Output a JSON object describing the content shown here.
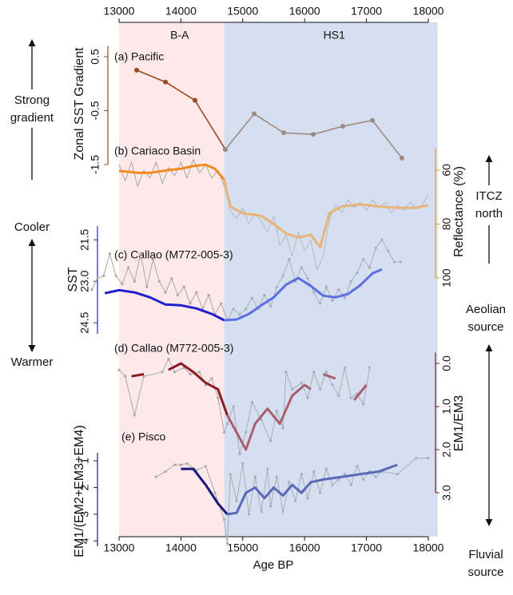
{
  "chart_data": {
    "type": "line",
    "xlabel": "Age BP",
    "xlim": [
      13000,
      18000
    ],
    "xticks": [
      13000,
      14000,
      15000,
      16000,
      17000,
      18000
    ],
    "regions": [
      {
        "label": "B-A",
        "start": 13000,
        "end": 14700,
        "color": "#fde9e9"
      },
      {
        "label": "HS1",
        "start": 14700,
        "end": 18150,
        "color": "#d6dff0"
      }
    ],
    "panels": [
      {
        "label": "(a) Pacific",
        "ylabel": "Zonal SST Gradient",
        "axis_side": "left",
        "axis_color": "#9b4a1a",
        "inverted": false,
        "ylim": [
          -1.5,
          0.7
        ],
        "yticks": [
          0.5,
          -0.5,
          -1.5
        ],
        "series": [
          {
            "style": "points",
            "color": "#9b4a1a",
            "hs1_color": "#9d8a82",
            "x": [
              13284,
              13750,
              14227,
              14718,
              15183,
              15661,
              16140,
              16618,
              17096,
              17574
            ],
            "values": [
              0.25,
              0.03,
              -0.31,
              -1.22,
              -0.56,
              -0.91,
              -0.94,
              -0.79,
              -0.68,
              -1.38
            ]
          }
        ]
      },
      {
        "label": "(b) Cariaco Basin",
        "ylabel": "Reflectance (%)",
        "axis_side": "right",
        "axis_color": "#f0961e",
        "inverted": true,
        "ylim": [
          52,
          100
        ],
        "yticks": [
          60,
          80,
          100
        ],
        "series": [
          {
            "style": "raw",
            "color": "#a8a8a8",
            "hs1_color": "#b4b8c4",
            "x": [
              13000,
              13100,
              13200,
              13300,
              13400,
              13500,
              13600,
              13700,
              13800,
              13900,
              14000,
              14100,
              14200,
              14300,
              14400,
              14500,
              14600,
              14700,
              14800,
              14900,
              15000,
              15100,
              15200,
              15300,
              15400,
              15500,
              15600,
              15700,
              15800,
              15900,
              16000,
              16100,
              16200,
              16300,
              16400,
              16500,
              16600,
              16700,
              16800,
              16900,
              17000,
              17100,
              17200,
              17300,
              17400,
              17500,
              17600,
              17700,
              17800,
              17900,
              18000
            ],
            "values": [
              58,
              64,
              57,
              66,
              60,
              63,
              57,
              65,
              59,
              62,
              57,
              63,
              56,
              61,
              58,
              63,
              60,
              66,
              75,
              78,
              74,
              80,
              76,
              79,
              83,
              77,
              88,
              84,
              92,
              83,
              90,
              86,
              97,
              92,
              78,
              73,
              76,
              71,
              74,
              72,
              75,
              71,
              74,
              72,
              76,
              73,
              75,
              72,
              74,
              73,
              69
            ]
          },
          {
            "style": "smooth",
            "color": "#f28a1e",
            "hs1_color": "#e9b47a",
            "x": [
              13000,
              13300,
              13500,
              13800,
              14000,
              14200,
              14400,
              14550,
              14700,
              14800,
              15000,
              15300,
              15500,
              15700,
              15900,
              16100,
              16250,
              16400,
              16600,
              16900,
              17200,
              17500,
              17800,
              18000
            ],
            "values": [
              60.3,
              61,
              61,
              60,
              59.5,
              58.5,
              58,
              59.5,
              63.5,
              73.5,
              76,
              77,
              80,
              83.5,
              85,
              84,
              88.6,
              76,
              73.5,
              72.7,
              73.5,
              74,
              74,
              73
            ]
          }
        ]
      },
      {
        "label": "(c) Callao (M772-005-3)",
        "ylabel": "SST",
        "axis_side": "left",
        "axis_color": "#2323d8",
        "inverted": true,
        "ylim": [
          21.0,
          24.9
        ],
        "yticks": [
          21.5,
          {
            "value": 23,
            "label": "23.0"
          },
          24.5
        ],
        "series": [
          {
            "style": "raw",
            "color": "#a8a8a8",
            "hs1_color": "#a8acb8",
            "x": [
              12560,
              12650,
              12750,
              12850,
              12950,
              13050,
              13150,
              13250,
              13350,
              13450,
              13550,
              13650,
              13750,
              13850,
              13950,
              14050,
              14150,
              14250,
              14350,
              14450,
              14550,
              14650,
              14750,
              14850,
              14950,
              15050,
              15150,
              15250,
              15350,
              15450,
              15550,
              15650,
              15750,
              15850,
              15950,
              16050,
              16150,
              16250,
              16350,
              16450,
              16550,
              16650,
              16750,
              16850,
              16950,
              17050,
              17150,
              17250,
              17350,
              17450,
              17550
            ],
            "values": [
              23.3,
              22.9,
              22.8,
              22.0,
              22.8,
              23.1,
              22.5,
              23.0,
              22.0,
              23.2,
              22.2,
              23.0,
              23.4,
              22.9,
              23.5,
              23.2,
              23.8,
              23.4,
              24.0,
              23.5,
              24.2,
              23.8,
              24.4,
              24.0,
              24.2,
              24.0,
              23.6,
              24.0,
              23.5,
              23.9,
              23.2,
              22.8,
              22.2,
              23.0,
              22.5,
              22.9,
              23.4,
              23.8,
              23.2,
              23.7,
              23.3,
              23.6,
              23.0,
              22.7,
              22.2,
              22.5,
              21.8,
              21.5,
              21.9,
              22.3,
              22.3
            ]
          },
          {
            "style": "smooth",
            "color": "#1f1fd0",
            "hs1_color": "#5a6ee0",
            "x": [
              12770,
              13000,
              13250,
              13500,
              13750,
              14000,
              14250,
              14500,
              14700,
              14900,
              15100,
              15300,
              15500,
              15700,
              15900,
              16100,
              16300,
              16500,
              16700,
              16900,
              17100,
              17250
            ],
            "values": [
              23.43,
              23.32,
              23.4,
              23.58,
              23.84,
              23.87,
              23.98,
              24.18,
              24.41,
              24.38,
              24.18,
              23.87,
              23.58,
              23.12,
              22.88,
              23.17,
              23.52,
              23.58,
              23.46,
              23.14,
              22.71,
              22.57
            ]
          }
        ]
      },
      {
        "label": "(d) Callao (M772-005-3)",
        "ylabel": "EM1/EM3",
        "axis_side": "right",
        "axis_color": "#8b1a22",
        "inverted": true,
        "ylim": [
          -0.25,
          3.0
        ],
        "yticks": [
          {
            "value": 0,
            "label": "0.0"
          },
          {
            "value": 1,
            "label": "1.0"
          },
          {
            "value": 2,
            "label": "2.0"
          },
          {
            "value": 3,
            "label": "3.0"
          }
        ],
        "series": [
          {
            "style": "raw",
            "color": "#a8a8a8",
            "hs1_color": "#a8acb8",
            "x": [
              13000,
              13100,
              13250,
              13400,
              13700,
              13800,
              13900,
              14050,
              14150,
              14300,
              14400,
              14500,
              14600,
              14700,
              14750,
              14850,
              14950,
              15050,
              15150,
              15300,
              15450,
              15550,
              15650,
              15700,
              15800,
              15950,
              16050,
              16150,
              16250,
              16350,
              16450,
              16550,
              16650,
              16750,
              16850,
              16950,
              17050
            ],
            "values": [
              0.15,
              0.3,
              1.2,
              0.3,
              0.2,
              -0.1,
              0.2,
              0.1,
              0.25,
              0.2,
              0.5,
              0.35,
              0.8,
              1.6,
              1.4,
              1.0,
              2.1,
              1.6,
              0.9,
              1.3,
              1.8,
              1.1,
              1.5,
              0.2,
              0.6,
              0.45,
              0.8,
              0.2,
              0.6,
              0.2,
              0.5,
              0.75,
              0.1,
              0.8,
              0.7,
              0.95,
              0.1
            ]
          },
          {
            "style": "smooth",
            "color": "#8b1a22",
            "hs1_color": "#a8606e",
            "x": [
              13200,
              13400,
              13600,
              13800,
              14000,
              14200,
              14400,
              14600,
              14750,
              14900,
              15050,
              15200,
              15400,
              15600,
              15800,
              16000,
              16100,
              16200,
              16300,
              16500,
              16650,
              16800,
              17000
            ],
            "values": [
              0.3,
              0.25,
              null,
              0.15,
              0.0,
              0.2,
              0.45,
              0.6,
              1.2,
              1.6,
              2.0,
              1.4,
              1.05,
              1.4,
              0.75,
              0.5,
              0.6,
              null,
              0.25,
              0.35,
              null,
              0.85,
              0.5
            ]
          }
        ]
      },
      {
        "label": "(e) Pisco",
        "ylabel": "EM1/(EM2+EM3+EM4)",
        "axis_side": "left",
        "axis_color": "#1a1a7a",
        "inverted": true,
        "ylim": [
          0.7,
          4.2
        ],
        "yticks": [
          1,
          2,
          3,
          4
        ],
        "series": [
          {
            "style": "raw",
            "color": "#a8a8a8",
            "hs1_color": "#a8acb8",
            "x": [
              13600,
              13750,
              13900,
              14000,
              14100,
              14250,
              14400,
              14550,
              14700,
              14750,
              14800,
              14900,
              15000,
              15100,
              15200,
              15300,
              15400,
              15450,
              15550,
              15650,
              15750,
              15850,
              15950,
              16050,
              16150,
              16250,
              16350,
              16450,
              16550,
              16650,
              16750,
              16850,
              16950,
              17050,
              17150,
              17250,
              17500,
              17800,
              18000
            ],
            "values": [
              1.6,
              1.4,
              1.15,
              1.15,
              1.1,
              1.35,
              1.2,
              2.2,
              3.2,
              4.1,
              1.5,
              2.5,
              1.1,
              3.0,
              1.6,
              2.9,
              1.3,
              2.7,
              1.6,
              2.9,
              1.8,
              2.5,
              1.5,
              2.4,
              1.4,
              2.2,
              1.3,
              1.9,
              1.7,
              1.5,
              1.9,
              1.2,
              1.7,
              1.4,
              1.6,
              1.4,
              1.5,
              0.9,
              0.9
            ]
          },
          {
            "style": "smooth",
            "color": "#1a1a7a",
            "hs1_color": "#5a68b8",
            "x": [
              14000,
              14200,
              14400,
              14600,
              14750,
              14900,
              15050,
              15200,
              15350,
              15500,
              15650,
              15800,
              15950,
              16100,
              16300,
              16600,
              16900,
              17200,
              17500
            ],
            "values": [
              1.3,
              1.3,
              1.9,
              2.6,
              3.0,
              2.95,
              2.2,
              2.0,
              2.4,
              2.0,
              2.3,
              1.9,
              2.2,
              1.8,
              1.7,
              1.6,
              1.5,
              1.4,
              1.15
            ]
          }
        ]
      }
    ]
  },
  "annotations": [
    "Strong",
    "gradient",
    "Cooler",
    "Warmer",
    "ITCZ",
    "north",
    "Aeolian",
    "source",
    "Fluvial",
    "source"
  ]
}
